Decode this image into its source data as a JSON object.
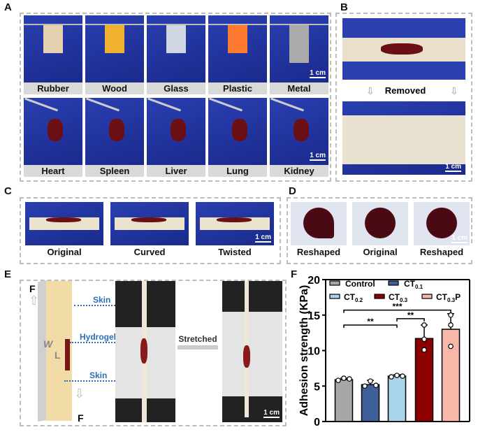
{
  "panels": {
    "A": {
      "label": "A",
      "top_row": [
        "Rubber",
        "Wood",
        "Glass",
        "Plastic",
        "Metal"
      ],
      "bottom_row": [
        "Heart",
        "Spleen",
        "Liver",
        "Lung",
        "Kidney"
      ],
      "scale": "1 cm"
    },
    "B": {
      "label": "B",
      "arrow_text": "Removed",
      "scale": "1 cm"
    },
    "C": {
      "label": "C",
      "captions": [
        "Original",
        "Curved",
        "Twisted"
      ],
      "scale": "1 cm"
    },
    "D": {
      "label": "D",
      "captions": [
        "Reshaped",
        "Original",
        "Reshaped"
      ],
      "scale": "1 cm"
    },
    "E": {
      "label": "E",
      "force": "F",
      "skin_top": "Skin",
      "hydrogel": "Hydrogel",
      "skin_bottom": "Skin",
      "width": "W",
      "length": "L",
      "stretched": "Stretched",
      "scale": "1 cm"
    },
    "F": {
      "label": "F"
    }
  },
  "chart_data": {
    "type": "bar",
    "ylabel": "Adhesion strength (KPa)",
    "ylim": [
      0,
      20
    ],
    "yticks": [
      "0",
      "5",
      "10",
      "15",
      "20"
    ],
    "categories": [
      "Control",
      "CT0.1",
      "CT0.2",
      "CT0.3",
      "CT0.3P"
    ],
    "legend": [
      {
        "name": "Control",
        "base": "Control",
        "sub": ""
      },
      {
        "name": "CT0.1",
        "base": "CT",
        "sub": "0.1"
      },
      {
        "name": "CT0.2",
        "base": "CT",
        "sub": "0.2"
      },
      {
        "name": "CT0.3",
        "base": "CT",
        "sub": "0.3"
      },
      {
        "name": "CT0.3P",
        "base": "CT",
        "sub": "0.3",
        "suffix": "P"
      }
    ],
    "colors": [
      "#a6a6a6",
      "#3f5f99",
      "#a9d4ea",
      "#8b0000",
      "#f7b8aa"
    ],
    "values": [
      5.9,
      5.2,
      6.4,
      11.7,
      13.0
    ],
    "errors": [
      0.2,
      0.6,
      0.2,
      1.9,
      2.2
    ],
    "points": [
      [
        5.8,
        6.1,
        6.0
      ],
      [
        5.0,
        5.7,
        5.1
      ],
      [
        6.3,
        6.5,
        6.4
      ],
      [
        13.6,
        11.6,
        10.1
      ],
      [
        15.0,
        13.6,
        10.6
      ]
    ],
    "significance": [
      {
        "from": 0,
        "to": 2,
        "label": "**",
        "y": 13.6
      },
      {
        "from": 2,
        "to": 3,
        "label": "**",
        "y": 14.5
      },
      {
        "from": 0,
        "to": 4,
        "label": "***",
        "y": 15.7
      }
    ],
    "legend_placement": "top"
  }
}
